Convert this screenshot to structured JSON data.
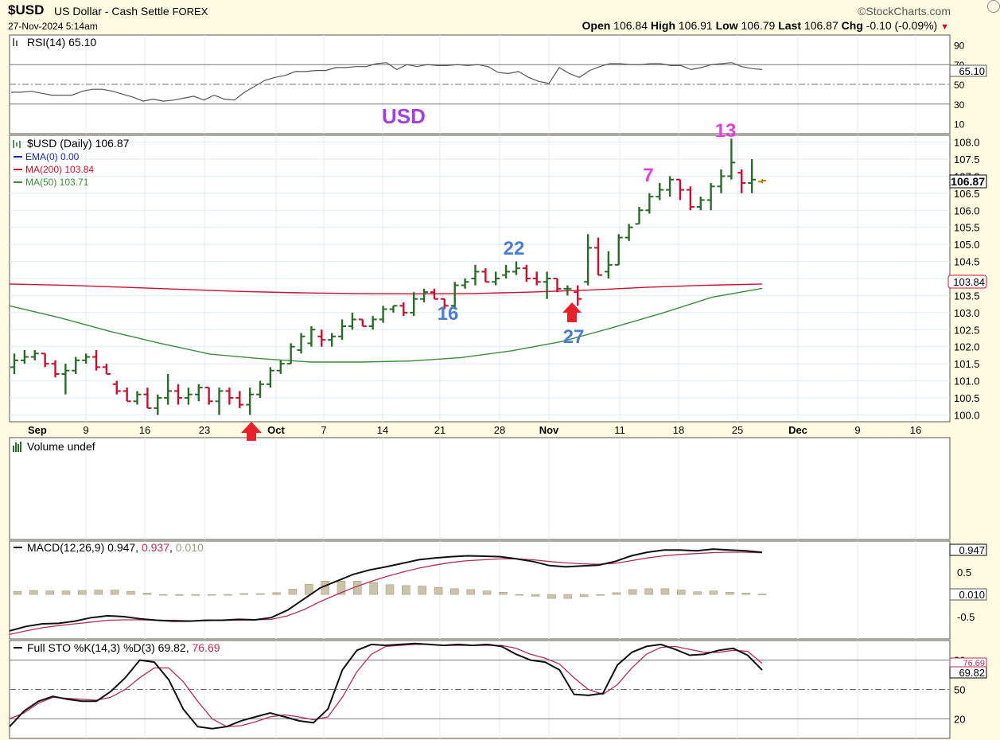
{
  "header": {
    "symbol": "$USD",
    "name": "US Dollar - Cash Settle",
    "exchange": "FOREX",
    "logo": "©StockCharts.com",
    "datetime": "27-Nov-2024 5:14am",
    "open_label": "Open",
    "open": "106.84",
    "high_label": "High",
    "high": "106.91",
    "low_label": "Low",
    "low": "106.79",
    "last_label": "Last",
    "last": "106.87",
    "chg_label": "Chg",
    "chg": "-0.10 (-0.09%)"
  },
  "colors": {
    "background": "#fffbe3",
    "panel": "#ffffff",
    "grid": "#dde9f5",
    "up_bar": "#2a6b2a",
    "down_bar": "#c8102e",
    "ma200": "#c8102e",
    "ma50": "#3c8a3c",
    "annotation_blue": "#4a7fd0",
    "annotation_magenta": "#e040d8",
    "usd_purple": "#a040e0",
    "arrow_red": "#e8202a"
  },
  "chart_data": [
    {
      "type": "line",
      "name": "RSI(14)",
      "label": "RSI(14) 65.10",
      "last_value": "65.10",
      "ylim": [
        0,
        100
      ],
      "ticks": [
        "90",
        "70",
        "50",
        "30",
        "10"
      ],
      "tick_values": [
        90,
        70,
        50,
        30,
        10
      ],
      "reference_lines": [
        70,
        50,
        30
      ],
      "values": [
        42,
        42,
        43,
        41,
        39,
        39,
        39,
        43,
        45,
        45,
        43,
        40,
        37,
        33,
        35,
        33,
        34,
        36,
        38,
        34,
        39,
        35,
        34,
        42,
        48,
        54,
        57,
        59,
        63,
        63,
        64,
        64,
        67,
        67,
        68,
        68,
        71,
        72,
        65,
        70,
        68,
        70,
        69,
        69,
        70,
        69,
        70,
        68,
        62,
        61,
        63,
        57,
        53,
        51,
        67,
        61,
        57,
        64,
        68,
        71,
        71,
        70,
        70,
        71,
        71,
        69,
        69,
        65,
        67,
        70,
        71,
        72,
        68,
        66,
        65
      ]
    },
    {
      "type": "bar",
      "name": "$USD (Daily)",
      "label_price": "$USD (Daily) 106.87",
      "label_ema": "EMA(0) 0.00",
      "label_ma200": "MA(200) 103.84",
      "label_ma50": "MA(50) 103.71",
      "ylim": [
        99.8,
        108.2
      ],
      "ticks": [
        "108.0",
        "107.5",
        "107.0",
        "106.5",
        "106.0",
        "105.5",
        "105.0",
        "104.5",
        "104.0",
        "103.5",
        "103.0",
        "102.5",
        "102.0",
        "101.5",
        "101.0",
        "100.5",
        "100.0"
      ],
      "tick_values": [
        108.0,
        107.5,
        107.0,
        106.5,
        106.0,
        105.5,
        105.0,
        104.5,
        104.0,
        103.5,
        103.0,
        102.5,
        102.0,
        101.5,
        101.0,
        100.5,
        100.0
      ],
      "last_price": "106.87",
      "ma200_last": "103.84",
      "x_labels": [
        "Sep",
        "9",
        "16",
        "23",
        "Oct",
        "7",
        "14",
        "21",
        "28",
        "Nov",
        "11",
        "18",
        "25",
        "Dec",
        "9",
        "16"
      ],
      "bars": [
        [
          101.4,
          101.8,
          101.2,
          101.6
        ],
        [
          101.6,
          101.9,
          101.5,
          101.7
        ],
        [
          101.7,
          101.9,
          101.6,
          101.8
        ],
        [
          101.8,
          101.8,
          101.4,
          101.5
        ],
        [
          101.5,
          101.6,
          101.1,
          101.2
        ],
        [
          101.2,
          101.5,
          100.6,
          101.3
        ],
        [
          101.3,
          101.7,
          101.2,
          101.6
        ],
        [
          101.6,
          101.8,
          101.5,
          101.7
        ],
        [
          101.7,
          101.9,
          101.3,
          101.4
        ],
        [
          101.4,
          101.5,
          101.2,
          101.2
        ],
        [
          100.9,
          101.0,
          100.6,
          100.7
        ],
        [
          100.7,
          100.8,
          100.4,
          100.4
        ],
        [
          100.4,
          100.7,
          100.3,
          100.6
        ],
        [
          100.6,
          100.8,
          100.2,
          100.2
        ],
        [
          100.2,
          100.6,
          100.0,
          100.5
        ],
        [
          100.5,
          101.2,
          100.3,
          100.7
        ],
        [
          100.7,
          100.9,
          100.3,
          100.5
        ],
        [
          100.5,
          100.8,
          100.3,
          100.6
        ],
        [
          100.6,
          100.9,
          100.4,
          100.8
        ],
        [
          100.8,
          100.8,
          100.3,
          100.4
        ],
        [
          100.4,
          100.8,
          100.0,
          100.7
        ],
        [
          100.7,
          100.8,
          100.3,
          100.5
        ],
        [
          100.5,
          100.7,
          100.2,
          100.3
        ],
        [
          100.3,
          100.8,
          100.0,
          100.6
        ],
        [
          100.6,
          101.0,
          100.5,
          100.9
        ],
        [
          100.9,
          101.4,
          100.8,
          101.3
        ],
        [
          101.3,
          101.6,
          101.2,
          101.5
        ],
        [
          101.5,
          102.1,
          101.5,
          102.0
        ],
        [
          101.9,
          102.4,
          101.8,
          102.3
        ],
        [
          102.1,
          102.6,
          102.0,
          102.5
        ],
        [
          102.3,
          102.5,
          102.0,
          102.2
        ],
        [
          102.2,
          102.4,
          102.0,
          102.3
        ],
        [
          102.3,
          102.8,
          102.2,
          102.6
        ],
        [
          102.6,
          103.0,
          102.5,
          102.8
        ],
        [
          102.8,
          102.8,
          102.6,
          102.6
        ],
        [
          102.6,
          102.9,
          102.5,
          102.8
        ],
        [
          102.8,
          103.2,
          102.7,
          103.1
        ],
        [
          103.1,
          103.2,
          103.0,
          103.2
        ],
        [
          103.2,
          103.3,
          102.9,
          103.0
        ],
        [
          103.0,
          103.6,
          102.9,
          103.4
        ],
        [
          103.4,
          103.7,
          103.3,
          103.6
        ],
        [
          103.6,
          103.7,
          103.4,
          103.4
        ],
        [
          103.4,
          103.4,
          103.1,
          103.2
        ],
        [
          103.2,
          103.9,
          103.1,
          103.8
        ],
        [
          103.8,
          104.0,
          103.7,
          103.9
        ],
        [
          104.0,
          104.4,
          103.8,
          104.2
        ],
        [
          104.2,
          104.3,
          103.9,
          103.9
        ],
        [
          103.9,
          104.2,
          103.8,
          104.0
        ],
        [
          104.1,
          104.4,
          104.0,
          104.2
        ],
        [
          104.2,
          104.5,
          104.1,
          104.3
        ],
        [
          104.3,
          104.4,
          103.9,
          104.0
        ],
        [
          104.0,
          104.2,
          103.8,
          103.9
        ],
        [
          103.9,
          104.2,
          103.4,
          104.0
        ],
        [
          104.0,
          104.0,
          103.6,
          103.7
        ],
        [
          103.7,
          103.8,
          103.5,
          103.7
        ],
        [
          103.6,
          103.8,
          103.2,
          103.4
        ],
        [
          103.9,
          105.3,
          103.8,
          104.9
        ],
        [
          104.9,
          105.2,
          104.1,
          104.1
        ],
        [
          104.2,
          104.8,
          104.0,
          104.4
        ],
        [
          104.4,
          105.3,
          104.4,
          105.2
        ],
        [
          105.2,
          105.6,
          105.1,
          105.5
        ],
        [
          105.6,
          106.1,
          105.6,
          106.0
        ],
        [
          106.0,
          106.5,
          105.9,
          106.4
        ],
        [
          106.4,
          106.8,
          106.3,
          106.6
        ],
        [
          106.6,
          107.0,
          106.4,
          106.9
        ],
        [
          106.9,
          106.9,
          106.3,
          106.6
        ],
        [
          106.6,
          106.7,
          106.0,
          106.1
        ],
        [
          106.1,
          106.4,
          106.0,
          106.3
        ],
        [
          106.3,
          106.8,
          106.0,
          106.7
        ],
        [
          106.7,
          107.2,
          106.5,
          107.0
        ],
        [
          107.0,
          108.1,
          106.9,
          107.4
        ],
        [
          107.1,
          107.2,
          106.5,
          106.8
        ],
        [
          106.8,
          107.5,
          106.5,
          106.9
        ],
        [
          106.84,
          106.91,
          106.79,
          106.87
        ]
      ],
      "ma200": [
        103.84,
        103.8,
        103.74,
        103.68,
        103.62,
        103.58,
        103.56,
        103.55,
        103.56,
        103.6,
        103.66,
        103.74,
        103.8,
        103.84
      ],
      "ma50": [
        103.2,
        102.85,
        102.45,
        102.1,
        101.78,
        101.65,
        101.55,
        101.55,
        101.58,
        101.68,
        101.88,
        102.15,
        102.55,
        102.98,
        103.45,
        103.71
      ],
      "annotations_blue": [
        "22",
        "16",
        "27"
      ],
      "annotations_magenta": [
        "13",
        "7"
      ],
      "watermark": "USD"
    },
    {
      "type": "bar",
      "name": "Volume",
      "label": "Volume undef"
    },
    {
      "type": "line",
      "name": "MACD(12,26,9)",
      "label_prefix": "MACD(12,26,9) 0.947, ",
      "label_signal": "0.937",
      "label_sep": ", ",
      "label_hist": "0.010",
      "last_macd": "0.947",
      "last_hist": "0.010",
      "ylim": [
        -1.0,
        1.2
      ],
      "ticks": [
        "0.5",
        "-0.5"
      ],
      "tick_values": [
        0.5,
        -0.5
      ],
      "macd": [
        -0.82,
        -0.72,
        -0.66,
        -0.65,
        -0.6,
        -0.52,
        -0.48,
        -0.5,
        -0.55,
        -0.58,
        -0.6,
        -0.6,
        -0.58,
        -0.58,
        -0.56,
        -0.57,
        -0.52,
        -0.35,
        -0.1,
        0.15,
        0.3,
        0.45,
        0.55,
        0.62,
        0.7,
        0.78,
        0.82,
        0.85,
        0.87,
        0.86,
        0.85,
        0.8,
        0.74,
        0.65,
        0.62,
        0.64,
        0.66,
        0.74,
        0.87,
        0.95,
        1.0,
        1.0,
        0.98,
        1.02,
        1.0,
        0.98,
        0.947
      ],
      "signal": [
        -0.9,
        -0.82,
        -0.75,
        -0.7,
        -0.66,
        -0.62,
        -0.58,
        -0.57,
        -0.57,
        -0.58,
        -0.58,
        -0.59,
        -0.59,
        -0.58,
        -0.58,
        -0.57,
        -0.56,
        -0.48,
        -0.34,
        -0.16,
        0.0,
        0.15,
        0.28,
        0.4,
        0.5,
        0.59,
        0.66,
        0.72,
        0.76,
        0.78,
        0.8,
        0.8,
        0.78,
        0.74,
        0.71,
        0.69,
        0.68,
        0.7,
        0.76,
        0.82,
        0.87,
        0.9,
        0.92,
        0.94,
        0.95,
        0.95,
        0.937
      ],
      "hist": [
        0.07,
        0.09,
        0.08,
        0.08,
        0.09,
        0.1,
        0.1,
        0.07,
        0.03,
        0.0,
        -0.02,
        -0.02,
        -0.01,
        0.0,
        0.02,
        0.02,
        0.04,
        0.12,
        0.23,
        0.3,
        0.3,
        0.3,
        0.27,
        0.22,
        0.2,
        0.19,
        0.16,
        0.13,
        0.11,
        0.08,
        0.05,
        0.0,
        -0.04,
        -0.09,
        -0.09,
        -0.05,
        -0.02,
        0.04,
        0.11,
        0.13,
        0.13,
        0.1,
        0.06,
        0.08,
        0.05,
        0.03,
        0.01
      ]
    },
    {
      "type": "line",
      "name": "Full STO %K(14,3) %D(3)",
      "label_prefix": "Full STO %K(14,3) %D(3) 69.82, ",
      "label_d": "76.69",
      "last_k": "69.82",
      "last_d": "76.69",
      "ylim": [
        0,
        100
      ],
      "ticks": [
        "80",
        "50",
        "20"
      ],
      "tick_values": [
        80,
        50,
        20
      ],
      "reference_lines": [
        80,
        50,
        20
      ],
      "k": [
        12,
        28,
        38,
        43,
        40,
        38,
        38,
        48,
        62,
        80,
        78,
        60,
        30,
        12,
        10,
        12,
        18,
        22,
        26,
        22,
        18,
        16,
        30,
        70,
        90,
        96,
        95,
        96,
        97,
        96,
        95,
        96,
        95,
        96,
        94,
        86,
        80,
        78,
        70,
        45,
        44,
        46,
        75,
        88,
        94,
        96,
        91,
        85,
        86,
        90,
        92,
        85,
        69.82
      ],
      "d": [
        20,
        26,
        36,
        42,
        41,
        40,
        39,
        42,
        50,
        62,
        72,
        72,
        58,
        38,
        20,
        12,
        13,
        17,
        22,
        24,
        22,
        19,
        22,
        42,
        68,
        86,
        94,
        95,
        96,
        96,
        95,
        95,
        95,
        95,
        95,
        92,
        86,
        82,
        76,
        62,
        50,
        45,
        55,
        72,
        86,
        93,
        94,
        91,
        88,
        88,
        90,
        89,
        76.69
      ]
    }
  ]
}
